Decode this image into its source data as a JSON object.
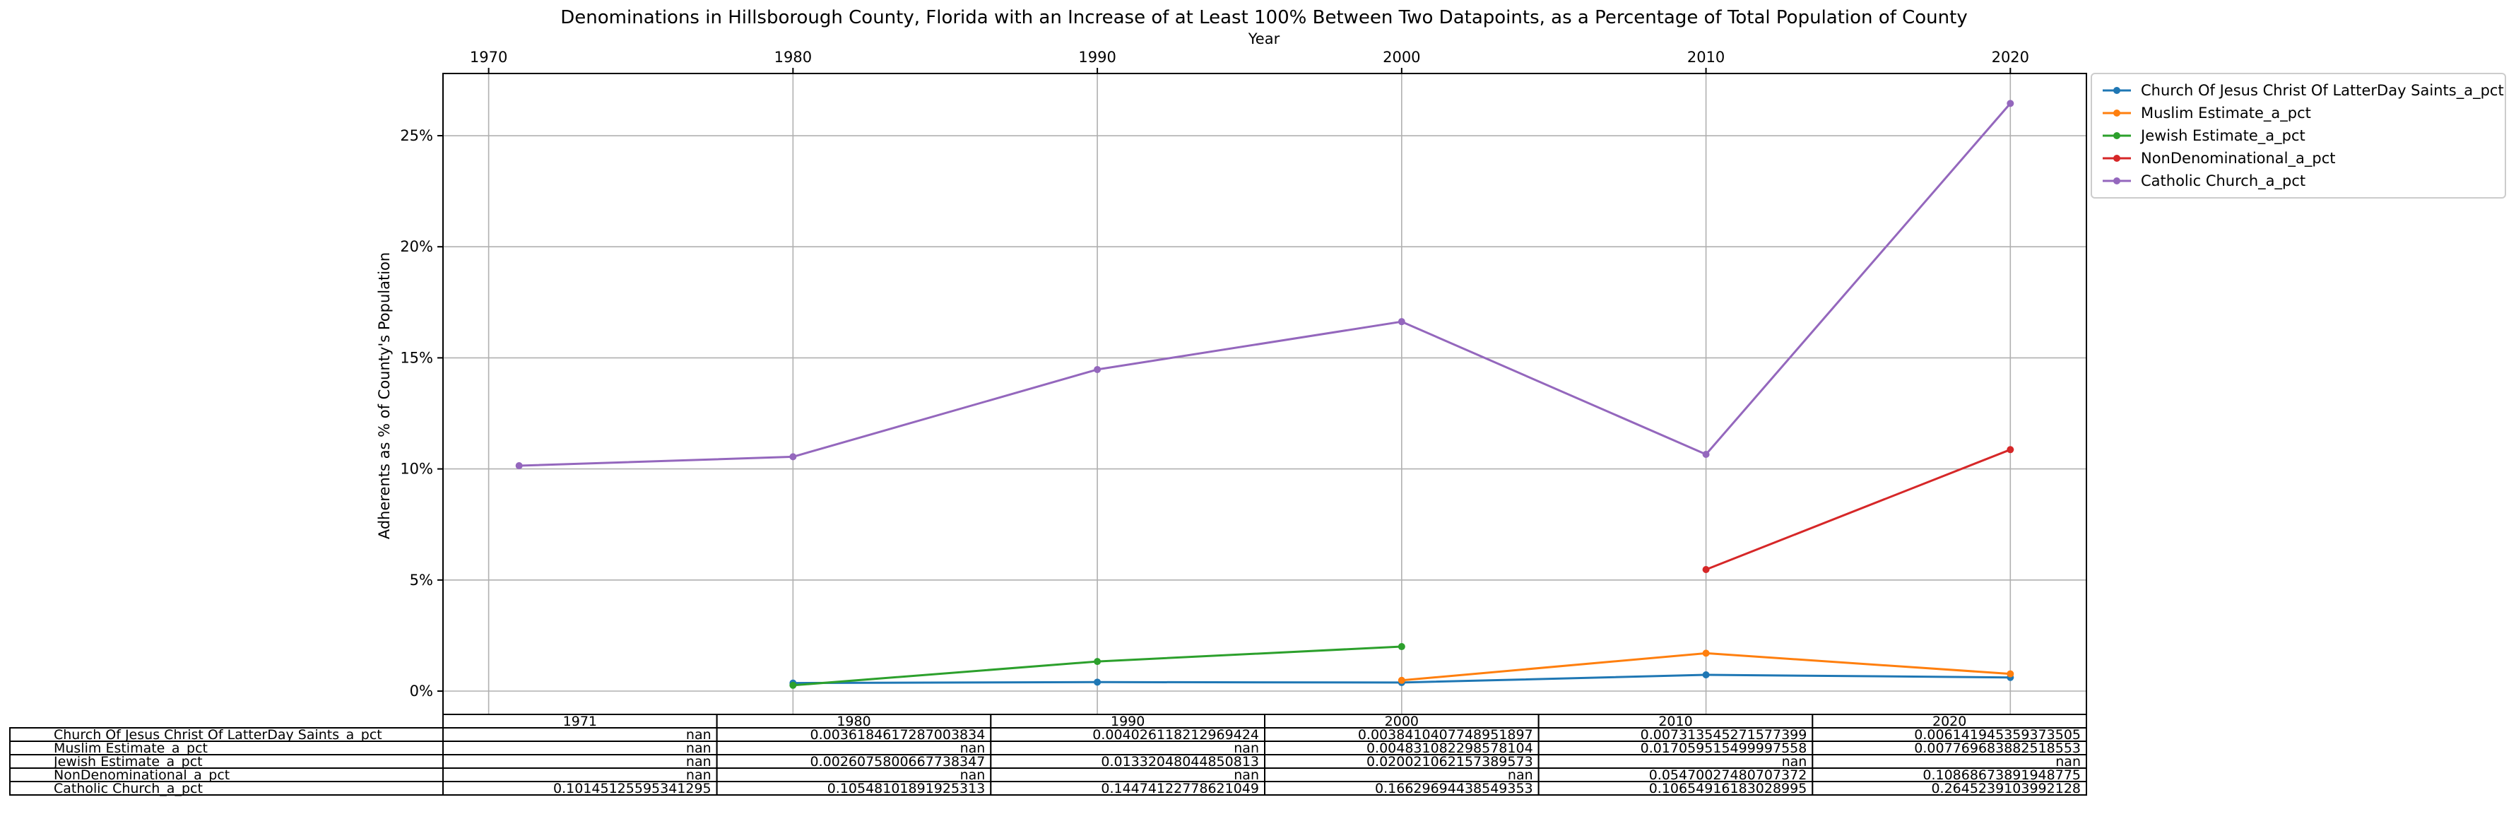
{
  "chart_data": {
    "type": "line",
    "title": "Denominations in Hillsborough County, Florida with an Increase of at Least 100% Between Two Datapoints, as a Percentage of Total Population of County",
    "xlabel": "Year",
    "ylabel": "Adherents as % of County's Population",
    "x_ticks": [
      "1970",
      "1980",
      "1990",
      "2000",
      "2010",
      "2020"
    ],
    "y_ticks": [
      "0%",
      "5%",
      "10%",
      "15%",
      "20%",
      "25%"
    ],
    "xlim": [
      1968.5,
      2022.5
    ],
    "ylim": [
      -0.0105,
      0.278
    ],
    "grid": true,
    "legend_position": "outside-top-right",
    "x": [
      1971,
      1980,
      1990,
      2000,
      2010,
      2020
    ],
    "series": [
      {
        "name": "Church Of Jesus Christ Of LatterDay Saints_a_pct",
        "color": "#1f77b4",
        "values": [
          null,
          0.0036184617287003834,
          0.004026118212969424,
          0.0038410407748951897,
          0.007313545271577399,
          0.006141945359373505
        ]
      },
      {
        "name": "Muslim Estimate_a_pct",
        "color": "#ff7f0e",
        "values": [
          null,
          null,
          null,
          0.004831082298578104,
          0.017059515499997558,
          0.007769683882518553
        ]
      },
      {
        "name": "Jewish Estimate_a_pct",
        "color": "#2ca02c",
        "values": [
          null,
          0.0026075800667738347,
          0.01332048044850813,
          0.020021062157389573,
          null,
          null
        ]
      },
      {
        "name": "NonDenominational_a_pct",
        "color": "#d62728",
        "values": [
          null,
          null,
          null,
          null,
          0.05470027480707372,
          0.10868673891948775
        ]
      },
      {
        "name": "Catholic Church_a_pct",
        "color": "#9467bd",
        "values": [
          0.10145125595341295,
          0.10548101891925313,
          0.14474122778621049,
          0.16629694438549353,
          0.10654916183028995,
          0.2645239103992128
        ]
      }
    ],
    "table": {
      "col_labels": [
        "1971",
        "1980",
        "1990",
        "2000",
        "2010",
        "2020"
      ],
      "rows": [
        {
          "label": "Church Of Jesus Christ Of LatterDay Saints_a_pct",
          "cells": [
            "nan",
            "0.0036184617287003834",
            "0.004026118212969424",
            "0.0038410407748951897",
            "0.007313545271577399",
            "0.006141945359373505"
          ]
        },
        {
          "label": "Muslim Estimate_a_pct",
          "cells": [
            "nan",
            "nan",
            "nan",
            "0.004831082298578104",
            "0.017059515499997558",
            "0.007769683882518553"
          ]
        },
        {
          "label": "Jewish Estimate_a_pct",
          "cells": [
            "nan",
            "0.0026075800667738347",
            "0.01332048044850813",
            "0.020021062157389573",
            "nan",
            "nan"
          ]
        },
        {
          "label": "NonDenominational_a_pct",
          "cells": [
            "nan",
            "nan",
            "nan",
            "nan",
            "0.05470027480707372",
            "0.10868673891948775"
          ]
        },
        {
          "label": "Catholic Church_a_pct",
          "cells": [
            "0.10145125595341295",
            "0.10548101891925313",
            "0.14474122778621049",
            "0.16629694438549353",
            "0.10654916183028995",
            "0.2645239103992128"
          ]
        }
      ]
    }
  }
}
